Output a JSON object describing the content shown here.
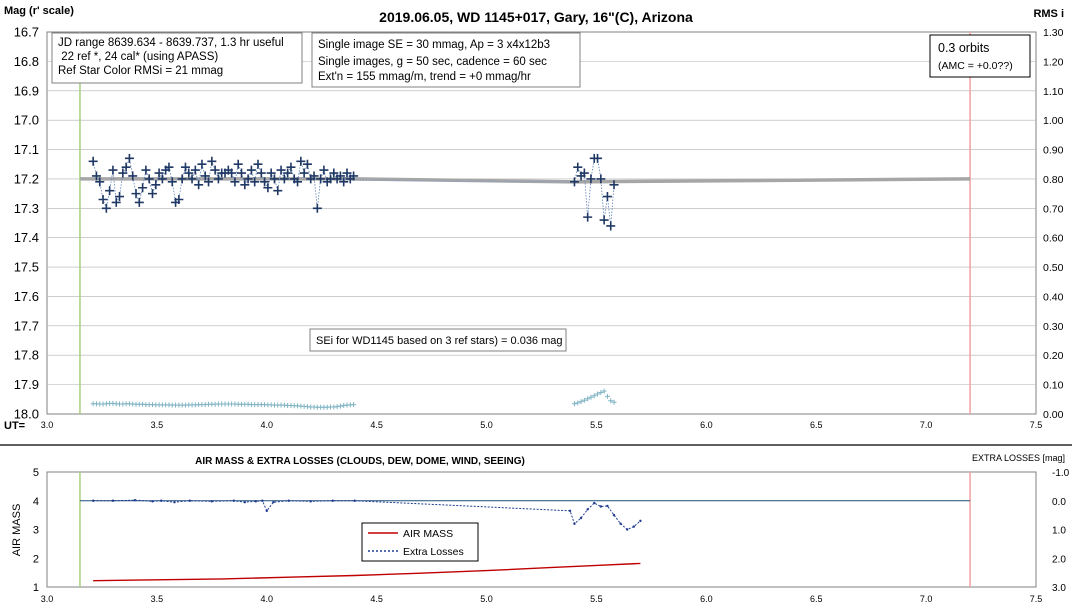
{
  "chart_data": [
    {
      "type": "scatter",
      "title": "2019.06.05, WD 1145+017, Gary, 16\"(C), Arizona",
      "ylabel": "Mag (r' scale)",
      "y2label": "RMS i",
      "xlabel_prefix": "UT=",
      "xlim": [
        3.0,
        7.5
      ],
      "ylim": [
        16.7,
        18.0
      ],
      "y2lim": [
        0.0,
        1.3
      ],
      "y_inverted": true,
      "xticks": [
        "3.0",
        "3.5",
        "4.0",
        "4.5",
        "5.0",
        "5.5",
        "6.0",
        "6.5",
        "7.0",
        "7.5"
      ],
      "yticks": [
        "16.7",
        "16.8",
        "16.9",
        "17.0",
        "17.1",
        "17.2",
        "17.3",
        "17.4",
        "17.5",
        "17.6",
        "17.7",
        "17.8",
        "17.9",
        "18.0"
      ],
      "y2ticks": [
        "0.00",
        "0.10",
        "0.20",
        "0.30",
        "0.40",
        "0.50",
        "0.60",
        "0.70",
        "0.80",
        "0.90",
        "1.00",
        "1.10",
        "1.20",
        "1.30"
      ],
      "vlines": [
        {
          "x": 3.15,
          "color": "#a8cf7e"
        },
        {
          "x": 7.2,
          "color": "#f2a0a0"
        }
      ],
      "annotations": {
        "info_box": [
          "JD range 8639.634 - 8639.737, 1.3 hr useful",
          " 22 ref *, 24 cal* (using APASS)",
          "Ref Star Color RMSi = 21 mmag"
        ],
        "params_box": [
          "Single image SE = 30 mmag, Ap = 3 x4x12b3",
          "Single images, g = 50 sec, cadence = 60 sec",
          "Ext'n = 155 mmag/m, trend = +0 mmag/hr"
        ],
        "orbits_box": [
          "0.3 orbits",
          "(AMC = +0.0??)"
        ],
        "sei_box": "SEi for WD1145 based on 3 ref stars) = 0.036 mag"
      },
      "series": [
        {
          "role": "magnitude",
          "color": "#1f3864",
          "x": [
            3.21,
            3.225,
            3.24,
            3.255,
            3.27,
            3.285,
            3.3,
            3.315,
            3.33,
            3.345,
            3.36,
            3.375,
            3.39,
            3.405,
            3.42,
            3.435,
            3.45,
            3.465,
            3.48,
            3.495,
            3.51,
            3.525,
            3.54,
            3.555,
            3.57,
            3.585,
            3.6,
            3.615,
            3.63,
            3.645,
            3.66,
            3.675,
            3.69,
            3.705,
            3.72,
            3.735,
            3.75,
            3.765,
            3.78,
            3.795,
            3.81,
            3.825,
            3.84,
            3.855,
            3.87,
            3.885,
            3.9,
            3.915,
            3.93,
            3.945,
            3.96,
            3.975,
            3.99,
            4.005,
            4.02,
            4.035,
            4.05,
            4.065,
            4.08,
            4.095,
            4.11,
            4.125,
            4.14,
            4.155,
            4.17,
            4.185,
            4.2,
            4.215,
            4.23,
            4.245,
            4.26,
            4.275,
            4.29,
            4.305,
            4.32,
            4.335,
            4.35,
            4.365,
            4.38,
            4.395,
            5.4,
            5.415,
            5.43,
            5.445,
            5.46,
            5.475,
            5.49,
            5.505,
            5.52,
            5.535,
            5.55,
            5.565,
            5.58
          ],
          "y": [
            17.14,
            17.19,
            17.21,
            17.27,
            17.3,
            17.24,
            17.17,
            17.28,
            17.26,
            17.18,
            17.16,
            17.13,
            17.19,
            17.25,
            17.28,
            17.23,
            17.17,
            17.2,
            17.25,
            17.22,
            17.18,
            17.2,
            17.17,
            17.16,
            17.21,
            17.28,
            17.27,
            17.2,
            17.16,
            17.18,
            17.2,
            17.17,
            17.22,
            17.15,
            17.19,
            17.21,
            17.14,
            17.17,
            17.2,
            17.18,
            17.18,
            17.17,
            17.18,
            17.21,
            17.15,
            17.18,
            17.22,
            17.2,
            17.17,
            17.21,
            17.15,
            17.18,
            17.21,
            17.23,
            17.18,
            17.2,
            17.24,
            17.17,
            17.2,
            17.18,
            17.16,
            17.2,
            17.21,
            17.14,
            17.18,
            17.15,
            17.2,
            17.19,
            17.3,
            17.2,
            17.17,
            17.21,
            17.2,
            17.18,
            17.2,
            17.19,
            17.21,
            17.18,
            17.2,
            17.19,
            17.21,
            17.16,
            17.19,
            17.18,
            17.33,
            17.2,
            17.13,
            17.13,
            17.2,
            17.34,
            17.26,
            17.36,
            17.22
          ]
        },
        {
          "role": "rms",
          "color": "#7fb3c4",
          "x": [
            3.21,
            3.225,
            3.24,
            3.255,
            3.27,
            3.285,
            3.3,
            3.315,
            3.33,
            3.345,
            3.36,
            3.375,
            3.39,
            3.405,
            3.42,
            3.435,
            3.45,
            3.465,
            3.48,
            3.495,
            3.51,
            3.525,
            3.54,
            3.555,
            3.57,
            3.585,
            3.6,
            3.615,
            3.63,
            3.645,
            3.66,
            3.675,
            3.69,
            3.705,
            3.72,
            3.735,
            3.75,
            3.765,
            3.78,
            3.795,
            3.81,
            3.825,
            3.84,
            3.855,
            3.87,
            3.885,
            3.9,
            3.915,
            3.93,
            3.945,
            3.96,
            3.975,
            3.99,
            4.005,
            4.02,
            4.035,
            4.05,
            4.065,
            4.08,
            4.095,
            4.11,
            4.125,
            4.14,
            4.155,
            4.17,
            4.185,
            4.2,
            4.215,
            4.23,
            4.245,
            4.26,
            4.275,
            4.29,
            4.305,
            4.32,
            4.335,
            4.35,
            4.365,
            4.38,
            4.395,
            5.4,
            5.415,
            5.43,
            5.445,
            5.46,
            5.475,
            5.49,
            5.505,
            5.52,
            5.535,
            5.55,
            5.565,
            5.58
          ],
          "y": [
            0.035,
            0.035,
            0.034,
            0.034,
            0.035,
            0.036,
            0.036,
            0.035,
            0.034,
            0.034,
            0.035,
            0.035,
            0.034,
            0.033,
            0.033,
            0.033,
            0.032,
            0.032,
            0.032,
            0.031,
            0.031,
            0.031,
            0.031,
            0.031,
            0.03,
            0.03,
            0.03,
            0.03,
            0.03,
            0.031,
            0.031,
            0.031,
            0.032,
            0.032,
            0.032,
            0.033,
            0.033,
            0.033,
            0.034,
            0.034,
            0.034,
            0.034,
            0.034,
            0.034,
            0.033,
            0.033,
            0.033,
            0.033,
            0.032,
            0.032,
            0.032,
            0.032,
            0.032,
            0.031,
            0.031,
            0.03,
            0.03,
            0.03,
            0.03,
            0.029,
            0.029,
            0.028,
            0.028,
            0.027,
            0.026,
            0.025,
            0.024,
            0.024,
            0.023,
            0.023,
            0.023,
            0.023,
            0.024,
            0.024,
            0.025,
            0.027,
            0.029,
            0.03,
            0.031,
            0.032,
            0.035,
            0.038,
            0.042,
            0.047,
            0.052,
            0.057,
            0.062,
            0.068,
            0.073,
            0.078,
            0.06,
            0.045,
            0.04
          ]
        },
        {
          "role": "model",
          "color": "#a6a6a6",
          "x": [
            3.15,
            4.4,
            5.4,
            7.2
          ],
          "y": [
            17.2,
            17.2,
            17.21,
            17.2
          ]
        }
      ]
    },
    {
      "type": "line",
      "title": "AIR MASS & EXTRA LOSSES (CLOUDS, DEW, DOME, WIND, SEEING)",
      "ylabel": "AIR MASS",
      "y2label": "EXTRA LOSSES [mag]",
      "xlim": [
        3.0,
        7.5
      ],
      "ylim": [
        1,
        5
      ],
      "y2lim": [
        3.0,
        -1.0
      ],
      "xticks": [
        "3.0",
        "3.5",
        "4.0",
        "4.5",
        "5.0",
        "5.5",
        "6.0",
        "6.5",
        "7.0",
        "7.5"
      ],
      "yticks": [
        "1",
        "2",
        "3",
        "4",
        "5"
      ],
      "y2ticks": [
        "3.0",
        "2.0",
        "1.0",
        "0.0",
        "-1.0"
      ],
      "vlines": [
        {
          "x": 3.15,
          "color": "#a8cf7e"
        },
        {
          "x": 7.2,
          "color": "#f2a0a0"
        }
      ],
      "hline": {
        "y2": 0.0,
        "color": "#1f4e79"
      },
      "legend": [
        {
          "name": "AIR MASS",
          "color": "#c00000",
          "style": "solid"
        },
        {
          "name": "Extra Losses",
          "color": "#1f3c8f",
          "style": "dotted"
        }
      ],
      "series": [
        {
          "name": "AIR MASS",
          "color": "#c00000",
          "x": [
            3.21,
            3.5,
            3.8,
            4.1,
            4.4,
            4.7,
            5.0,
            5.3,
            5.5,
            5.7
          ],
          "y": [
            1.22,
            1.25,
            1.28,
            1.34,
            1.4,
            1.48,
            1.57,
            1.68,
            1.75,
            1.82
          ]
        },
        {
          "name": "Extra Losses",
          "color": "#1f3c8f",
          "x": [
            3.21,
            3.3,
            3.4,
            3.48,
            3.52,
            3.58,
            3.65,
            3.75,
            3.85,
            3.9,
            3.95,
            3.98,
            4.0,
            4.03,
            4.1,
            4.2,
            4.3,
            4.4,
            5.38,
            5.4,
            5.43,
            5.46,
            5.49,
            5.52,
            5.55,
            5.58,
            5.61,
            5.64,
            5.67,
            5.7
          ],
          "y": [
            0.0,
            0.0,
            -0.02,
            0.02,
            0.0,
            0.05,
            0.0,
            0.02,
            0.0,
            0.05,
            0.02,
            0.0,
            0.35,
            0.05,
            0.0,
            0.02,
            0.0,
            0.0,
            0.35,
            0.8,
            0.6,
            0.3,
            0.08,
            0.2,
            0.18,
            0.5,
            0.8,
            1.0,
            0.9,
            0.7
          ]
        }
      ]
    }
  ]
}
